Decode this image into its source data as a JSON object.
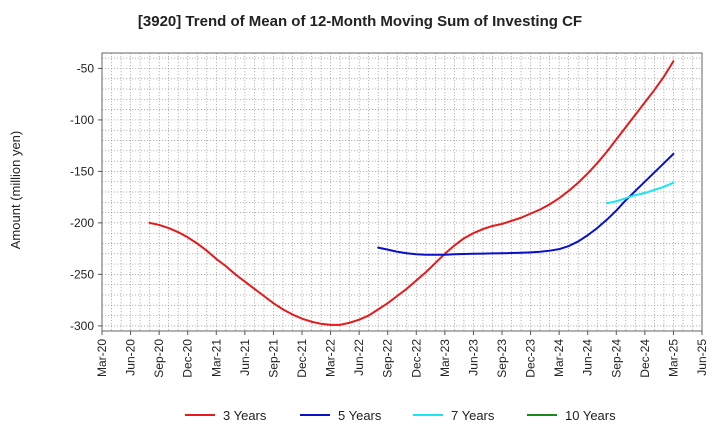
{
  "chart_data": {
    "type": "line",
    "title": "[3920]  Trend of Mean of 12-Month Moving Sum of Investing CF",
    "xlabel": "",
    "ylabel": "Amount (million yen)",
    "ylim": [
      -305,
      -35
    ],
    "yticks": [
      -50,
      -100,
      -150,
      -200,
      -250,
      -300
    ],
    "x_ticks": [
      "Mar-20",
      "Jun-20",
      "Sep-20",
      "Dec-20",
      "Mar-21",
      "Jun-21",
      "Sep-21",
      "Dec-21",
      "Mar-22",
      "Jun-22",
      "Sep-22",
      "Dec-22",
      "Mar-23",
      "Jun-23",
      "Sep-23",
      "Dec-23",
      "Mar-24",
      "Jun-24",
      "Sep-24",
      "Dec-24",
      "Mar-25",
      "Jun-25"
    ],
    "grid": true,
    "legend_position": "bottom",
    "series": [
      {
        "name": "3 Years",
        "color": "#e41a1c",
        "points": [
          [
            "Aug-20",
            -200
          ],
          [
            "Sep-20",
            -202
          ],
          [
            "Oct-20",
            -205
          ],
          [
            "Nov-20",
            -209
          ],
          [
            "Dec-20",
            -214
          ],
          [
            "Jan-21",
            -220
          ],
          [
            "Feb-21",
            -227
          ],
          [
            "Mar-21",
            -235
          ],
          [
            "Apr-21",
            -242
          ],
          [
            "May-21",
            -250
          ],
          [
            "Jun-21",
            -257
          ],
          [
            "Jul-21",
            -264
          ],
          [
            "Aug-21",
            -271
          ],
          [
            "Sep-21",
            -278
          ],
          [
            "Oct-21",
            -284
          ],
          [
            "Nov-21",
            -289
          ],
          [
            "Dec-21",
            -293
          ],
          [
            "Jan-22",
            -296
          ],
          [
            "Feb-22",
            -298
          ],
          [
            "Mar-22",
            -299
          ],
          [
            "Apr-22",
            -299
          ],
          [
            "May-22",
            -297
          ],
          [
            "Jun-22",
            -294
          ],
          [
            "Jul-22",
            -290
          ],
          [
            "Aug-22",
            -284
          ],
          [
            "Sep-22",
            -278
          ],
          [
            "Oct-22",
            -271
          ],
          [
            "Nov-22",
            -264
          ],
          [
            "Dec-22",
            -256
          ],
          [
            "Jan-23",
            -248
          ],
          [
            "Feb-23",
            -239
          ],
          [
            "Mar-23",
            -230
          ],
          [
            "Apr-23",
            -222
          ],
          [
            "May-23",
            -215
          ],
          [
            "Jun-23",
            -210
          ],
          [
            "Jul-23",
            -206
          ],
          [
            "Aug-23",
            -203
          ],
          [
            "Sep-23",
            -201
          ],
          [
            "Oct-23",
            -198
          ],
          [
            "Nov-23",
            -195
          ],
          [
            "Dec-23",
            -191
          ],
          [
            "Jan-24",
            -187
          ],
          [
            "Feb-24",
            -182
          ],
          [
            "Mar-24",
            -176
          ],
          [
            "Apr-24",
            -169
          ],
          [
            "May-24",
            -161
          ],
          [
            "Jun-24",
            -152
          ],
          [
            "Jul-24",
            -142
          ],
          [
            "Aug-24",
            -131
          ],
          [
            "Sep-24",
            -119
          ],
          [
            "Oct-24",
            -107
          ],
          [
            "Nov-24",
            -95
          ],
          [
            "Dec-24",
            -83
          ],
          [
            "Jan-25",
            -71
          ],
          [
            "Feb-25",
            -58
          ],
          [
            "Mar-25",
            -43
          ]
        ]
      },
      {
        "name": "5 Years",
        "color": "#0a10c8",
        "points": [
          [
            "Aug-22",
            -224
          ],
          [
            "Sep-22",
            -226
          ],
          [
            "Oct-22",
            -228
          ],
          [
            "Nov-22",
            -229.5
          ],
          [
            "Dec-22",
            -230.5
          ],
          [
            "Jan-23",
            -231
          ],
          [
            "Feb-23",
            -231
          ],
          [
            "Mar-23",
            -231
          ],
          [
            "Apr-23",
            -230.5
          ],
          [
            "May-23",
            -230.2
          ],
          [
            "Jun-23",
            -230
          ],
          [
            "Jul-23",
            -229.8
          ],
          [
            "Aug-23",
            -229.6
          ],
          [
            "Sep-23",
            -229.5
          ],
          [
            "Oct-23",
            -229.3
          ],
          [
            "Nov-23",
            -229
          ],
          [
            "Dec-23",
            -228.6
          ],
          [
            "Jan-24",
            -228
          ],
          [
            "Feb-24",
            -227
          ],
          [
            "Mar-24",
            -225.5
          ],
          [
            "Apr-24",
            -222.5
          ],
          [
            "May-24",
            -218
          ],
          [
            "Jun-24",
            -212
          ],
          [
            "Jul-24",
            -205
          ],
          [
            "Aug-24",
            -197
          ],
          [
            "Sep-24",
            -188
          ],
          [
            "Oct-24",
            -178
          ],
          [
            "Nov-24",
            -169
          ],
          [
            "Dec-24",
            -160
          ],
          [
            "Jan-25",
            -151
          ],
          [
            "Feb-25",
            -142
          ],
          [
            "Mar-25",
            -133
          ]
        ]
      },
      {
        "name": "7 Years",
        "color": "#19e6f0",
        "points": [
          [
            "Aug-24",
            -181
          ],
          [
            "Sep-24",
            -179
          ],
          [
            "Oct-24",
            -176
          ],
          [
            "Nov-24",
            -173
          ],
          [
            "Dec-24",
            -171
          ],
          [
            "Jan-25",
            -168
          ],
          [
            "Feb-25",
            -165
          ],
          [
            "Mar-25",
            -161
          ]
        ]
      },
      {
        "name": "10 Years",
        "color": "#1a8a1a",
        "points": []
      }
    ]
  }
}
